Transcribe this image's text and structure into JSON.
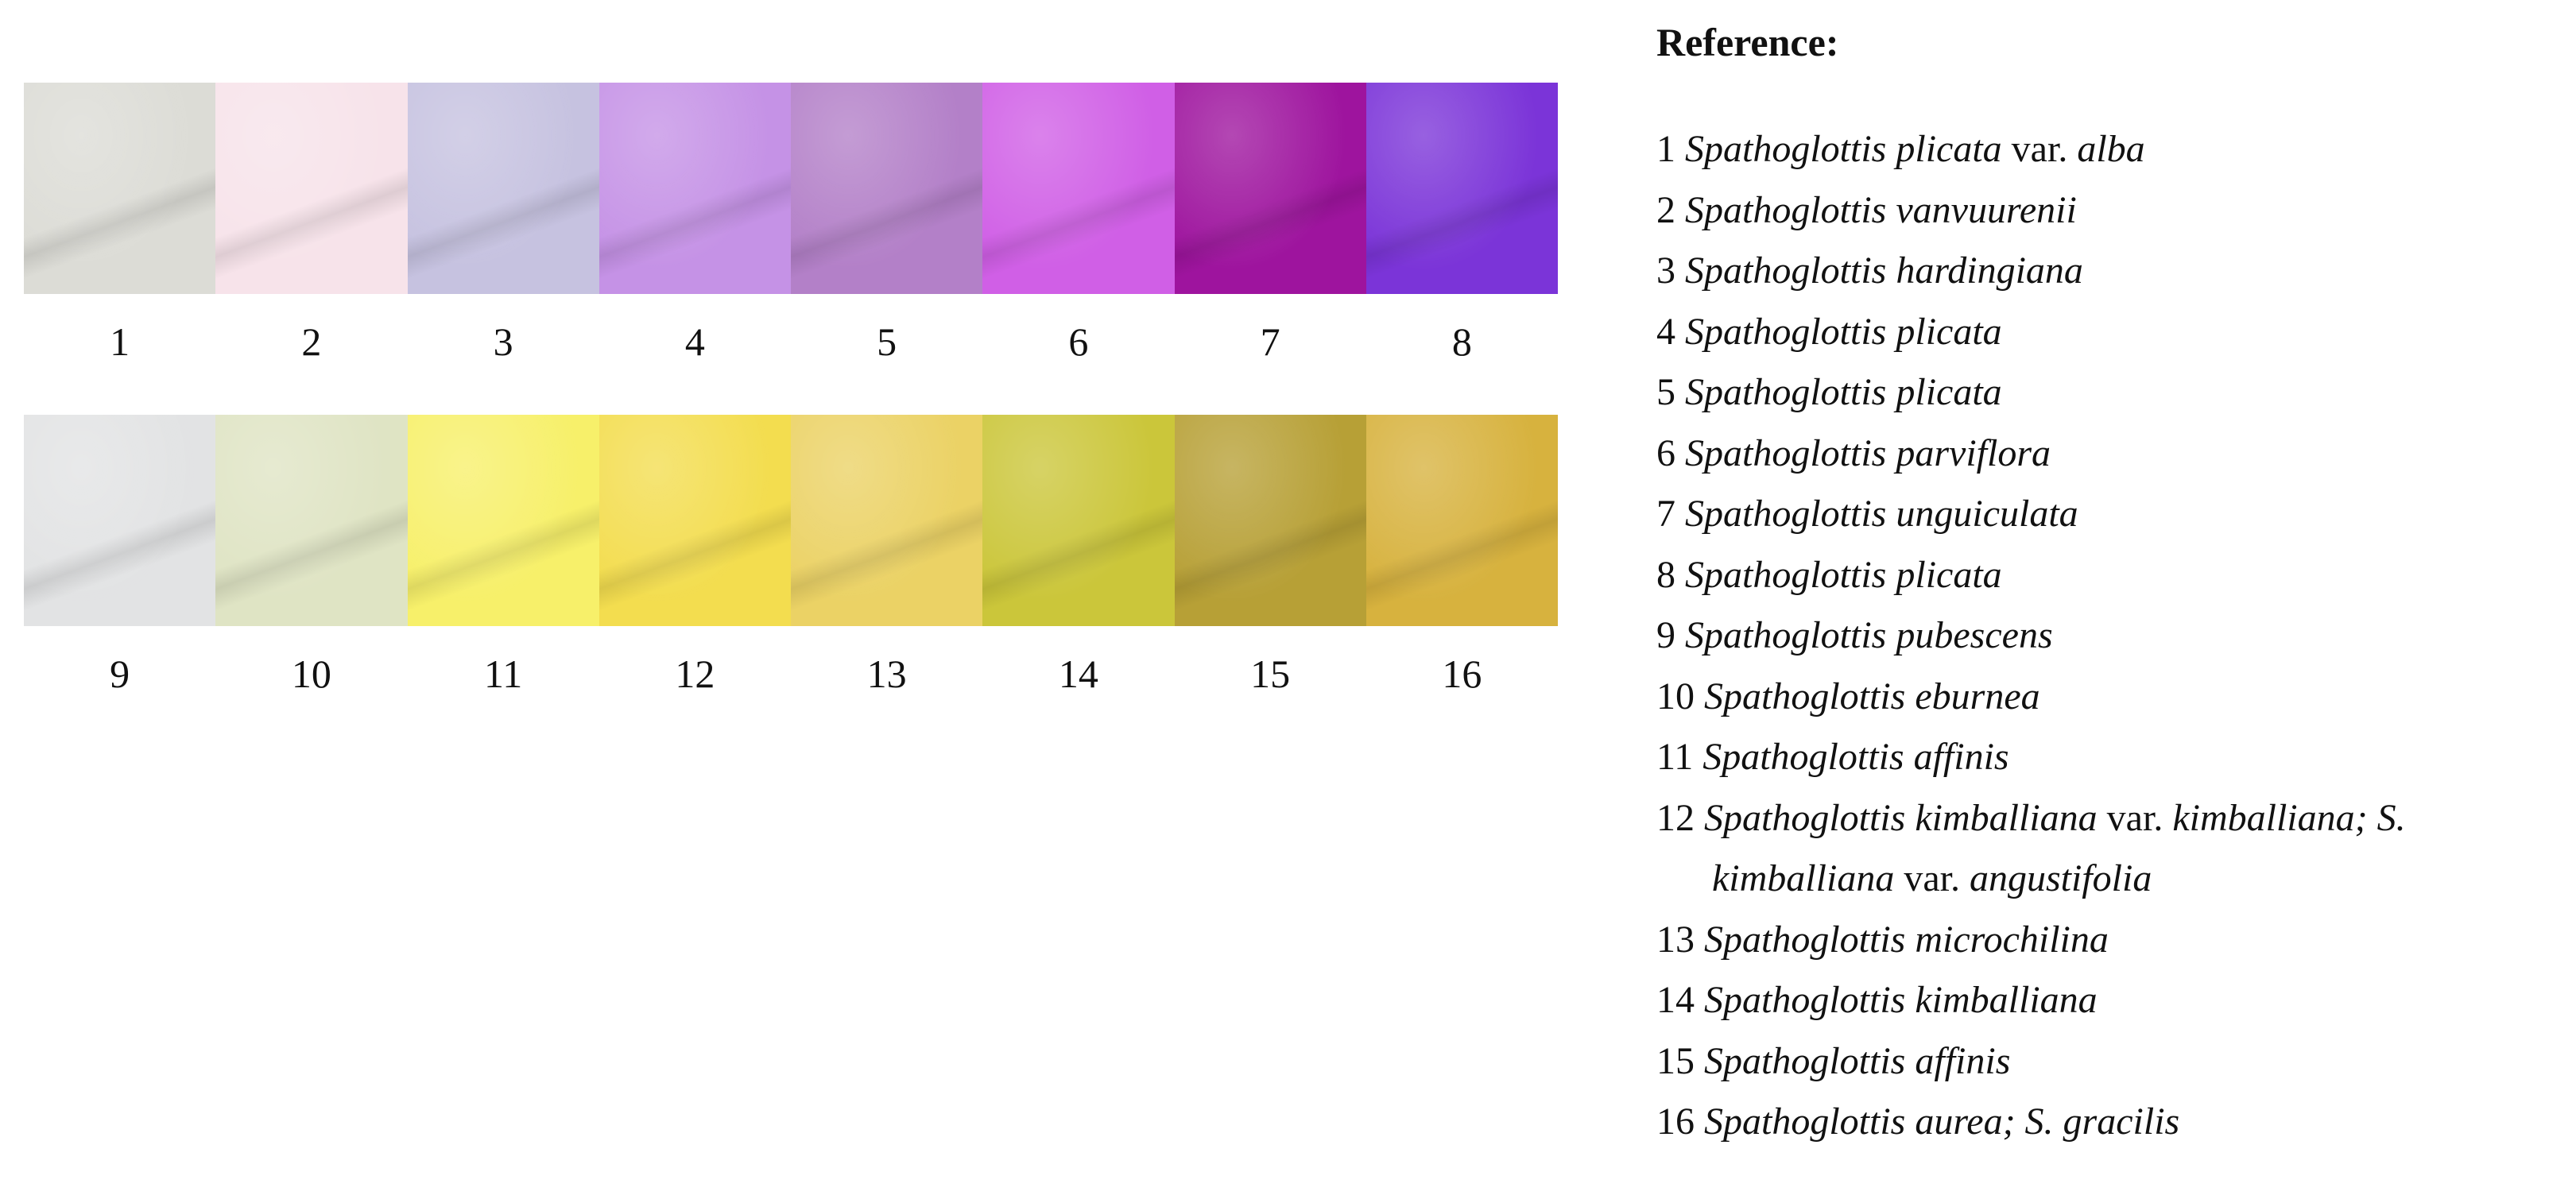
{
  "swatches_top": [
    {
      "num": "1",
      "color": "#dcdcd6"
    },
    {
      "num": "2",
      "color": "#f7e3ea"
    },
    {
      "num": "3",
      "color": "#c6c2e0"
    },
    {
      "num": "4",
      "color": "#c592e6"
    },
    {
      "num": "5",
      "color": "#b380c8"
    },
    {
      "num": "6",
      "color": "#d05fe6"
    },
    {
      "num": "7",
      "color": "#9e149e"
    },
    {
      "num": "8",
      "color": "#7b34d8"
    }
  ],
  "swatches_bottom": [
    {
      "num": "9",
      "color": "#e2e3e4"
    },
    {
      "num": "10",
      "color": "#dfe4c4"
    },
    {
      "num": "11",
      "color": "#f7f06a"
    },
    {
      "num": "12",
      "color": "#f3dd4f"
    },
    {
      "num": "13",
      "color": "#ebd265"
    },
    {
      "num": "14",
      "color": "#cbc63a"
    },
    {
      "num": "15",
      "color": "#b7a036"
    },
    {
      "num": "16",
      "color": "#d7b23e"
    }
  ],
  "reference": {
    "title": "Reference:",
    "items": [
      [
        [
          "",
          "1 "
        ],
        [
          "i",
          "Spathoglottis plicata"
        ],
        [
          "",
          " var. "
        ],
        [
          "i",
          "alba"
        ]
      ],
      [
        [
          "",
          "2 "
        ],
        [
          "i",
          "Spathoglottis vanvuurenii"
        ]
      ],
      [
        [
          "",
          "3 "
        ],
        [
          "i",
          "Spathoglottis hardingiana"
        ]
      ],
      [
        [
          "",
          "4 "
        ],
        [
          "i",
          "Spathoglottis plicata"
        ]
      ],
      [
        [
          "",
          "5 "
        ],
        [
          "i",
          "Spathoglottis plicata"
        ]
      ],
      [
        [
          "",
          "6 "
        ],
        [
          "i",
          "Spathoglottis parviflora"
        ]
      ],
      [
        [
          "",
          "7 "
        ],
        [
          "i",
          "Spathoglottis unguiculata"
        ]
      ],
      [
        [
          "",
          "8 "
        ],
        [
          "i",
          "Spathoglottis plicata"
        ]
      ],
      [
        [
          "",
          "9 "
        ],
        [
          "i",
          "Spathoglottis pubescens"
        ]
      ],
      [
        [
          "",
          "10 "
        ],
        [
          "i",
          "Spathoglottis eburnea"
        ]
      ],
      [
        [
          "",
          "11 "
        ],
        [
          "i",
          "Spathoglottis affinis"
        ]
      ],
      [
        [
          "",
          "12 "
        ],
        [
          "i",
          "Spathoglottis kimballiana"
        ],
        [
          "",
          " var. "
        ],
        [
          "i",
          "kimballiana; S. kimballiana"
        ],
        [
          "",
          " var. "
        ],
        [
          "i",
          "angustifolia"
        ]
      ],
      [
        [
          "",
          "13 "
        ],
        [
          "i",
          "Spathoglottis microchilina"
        ]
      ],
      [
        [
          "",
          "14 "
        ],
        [
          "i",
          "Spathoglottis kimballiana"
        ]
      ],
      [
        [
          "",
          "15 "
        ],
        [
          "i",
          "Spathoglottis affinis"
        ]
      ],
      [
        [
          "",
          "16 "
        ],
        [
          "i",
          "Spathoglottis aurea; S. gracilis"
        ]
      ]
    ]
  }
}
